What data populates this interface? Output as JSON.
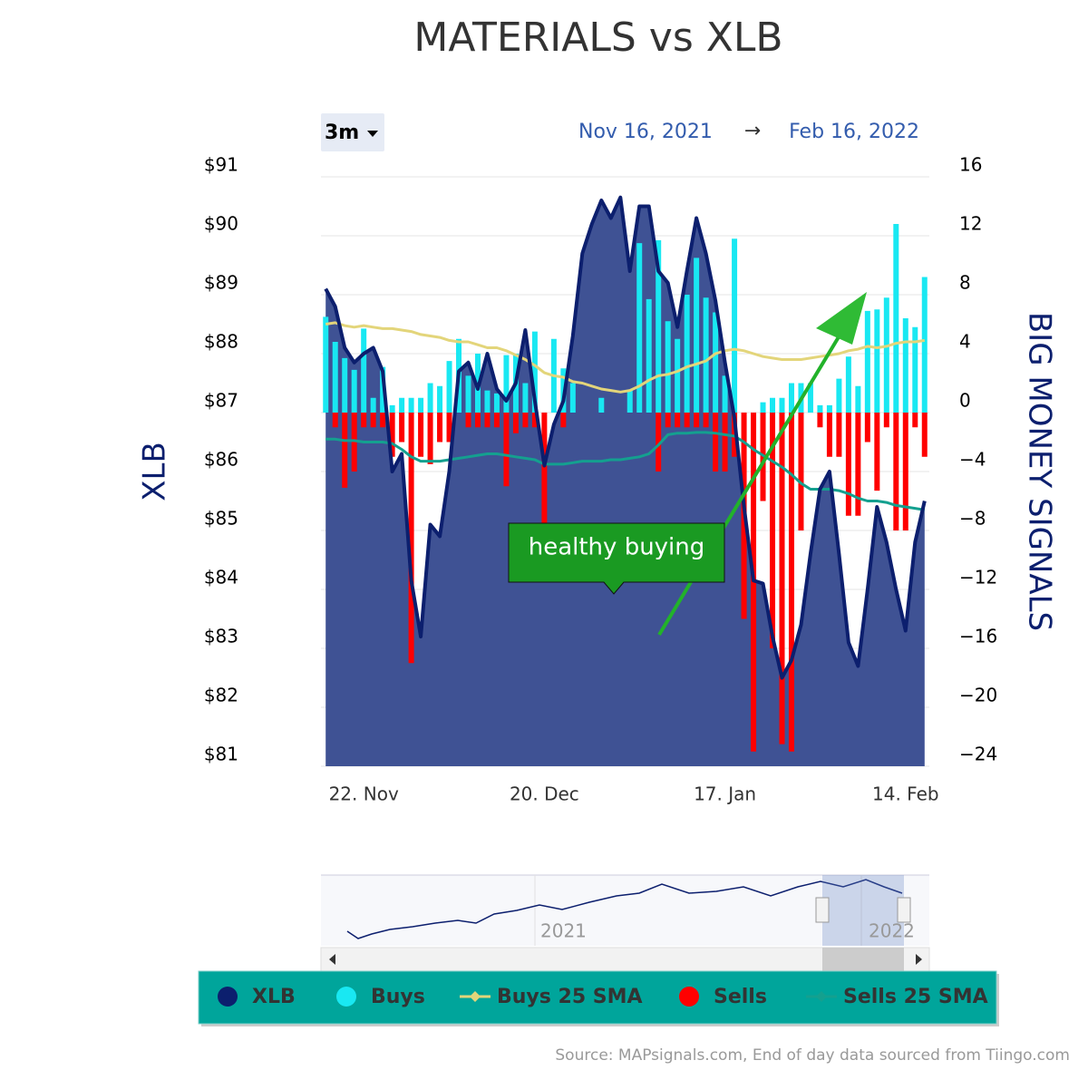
{
  "chart_data": {
    "type": "combo",
    "title": "MATERIALS vs XLB",
    "range_selector": {
      "button": "3m",
      "from": "Nov 16, 2021",
      "arrow": "→",
      "to": "Feb 16, 2022"
    },
    "ylabel": "XLB",
    "y2label": "BIG MONEY SIGNALS",
    "annotation": "healthy buying",
    "navigator": {
      "labels": [
        "2021",
        "2022"
      ]
    },
    "source": "Source: MAPsignals.com, End of day data sourced from Tiingo.com",
    "categories": [
      null,
      null,
      null,
      null,
      "22. Nov",
      null,
      null,
      null,
      null,
      null,
      null,
      null,
      null,
      null,
      null,
      null,
      null,
      null,
      null,
      null,
      null,
      null,
      null,
      "20. Dec",
      null,
      null,
      null,
      null,
      null,
      null,
      null,
      null,
      null,
      null,
      null,
      null,
      null,
      null,
      null,
      null,
      null,
      null,
      "17. Jan",
      null,
      null,
      null,
      null,
      null,
      null,
      null,
      null,
      null,
      null,
      null,
      null,
      null,
      null,
      null,
      null,
      null,
      null,
      "14. Feb",
      null,
      null
    ],
    "ylim": [
      81,
      91
    ],
    "yticks": [
      {
        "value": 81,
        "label": "$81"
      },
      {
        "value": 82,
        "label": "$82"
      },
      {
        "value": 83,
        "label": "$83"
      },
      {
        "value": 84,
        "label": "$84"
      },
      {
        "value": 85,
        "label": "$85"
      },
      {
        "value": 86,
        "label": "$86"
      },
      {
        "value": 87,
        "label": "$87"
      },
      {
        "value": 88,
        "label": "$88"
      },
      {
        "value": 89,
        "label": "$89"
      },
      {
        "value": 90,
        "label": "$90"
      },
      {
        "value": 91,
        "label": "$91"
      }
    ],
    "y2lim": [
      -24,
      16
    ],
    "y2ticks": [
      {
        "value": -24,
        "label": "−24"
      },
      {
        "value": -20,
        "label": "−20"
      },
      {
        "value": -16,
        "label": "−16"
      },
      {
        "value": -12,
        "label": "−12"
      },
      {
        "value": -8,
        "label": "−8"
      },
      {
        "value": -4,
        "label": "−4"
      },
      0,
      4,
      8,
      12,
      16
    ],
    "grid": true,
    "series": [
      {
        "name": "XLB",
        "type": "area",
        "color": "#0c1f6e",
        "fill": "#3f5294",
        "values": [
          89.1,
          88.8,
          88.1,
          87.85,
          88.0,
          88.1,
          87.7,
          86.0,
          86.3,
          84.15,
          83.2,
          85.1,
          84.9,
          86.0,
          87.7,
          87.85,
          87.4,
          88.0,
          87.4,
          87.2,
          87.5,
          88.4,
          87.2,
          86.1,
          86.8,
          87.2,
          88.3,
          89.7,
          90.2,
          90.6,
          90.3,
          90.65,
          89.4,
          90.5,
          90.5,
          89.4,
          89.2,
          88.45,
          89.4,
          90.3,
          89.7,
          88.9,
          87.85,
          86.9,
          85.4,
          84.15,
          84.1,
          83.2,
          82.5,
          82.8,
          83.4,
          84.6,
          85.7,
          86.0,
          84.6,
          83.1,
          82.7,
          84.0,
          85.4,
          84.8,
          84.0,
          83.3,
          84.8,
          85.5
        ]
      },
      {
        "name": "Buys",
        "type": "bar",
        "axis": "y2",
        "color": "#19e8f2",
        "values": [
          6.5,
          4.8,
          3.7,
          2.9,
          5.7,
          1,
          3.1,
          0.5,
          1,
          1,
          1,
          2,
          1.8,
          3.5,
          5,
          2.5,
          4,
          1.5,
          1.3,
          3.9,
          4,
          2,
          5.5,
          0,
          5,
          3,
          2,
          0,
          0,
          1,
          0,
          0,
          1.5,
          11.5,
          7.7,
          11.7,
          6.2,
          5,
          8,
          10.5,
          7.8,
          6.8,
          2.5,
          11.8,
          0,
          0,
          0.7,
          1,
          1,
          2,
          2,
          2,
          0.5,
          0.5,
          2.3,
          3.8,
          1.8,
          6.9,
          7,
          7.8,
          12.8,
          6.4,
          5.8,
          9.2
        ]
      },
      {
        "name": "Buys 25 SMA",
        "type": "line",
        "axis": "y2",
        "color": "#e3d57a",
        "values": [
          6.0,
          6.1,
          5.9,
          5.8,
          5.9,
          5.8,
          5.7,
          5.7,
          5.6,
          5.5,
          5.3,
          5.2,
          5.1,
          4.9,
          4.8,
          4.8,
          4.6,
          4.4,
          4.4,
          4.2,
          3.9,
          3.6,
          3.2,
          2.7,
          2.5,
          2.4,
          2.1,
          2.0,
          1.8,
          1.6,
          1.5,
          1.4,
          1.5,
          1.8,
          2.2,
          2.5,
          2.6,
          2.8,
          3.1,
          3.3,
          3.5,
          4.0,
          4.2,
          4.3,
          4.2,
          4.0,
          3.8,
          3.7,
          3.6,
          3.6,
          3.6,
          3.7,
          3.8,
          3.9,
          4.0,
          4.2,
          4.3,
          4.5,
          4.4,
          4.5,
          4.7,
          4.8,
          4.8,
          4.9
        ]
      },
      {
        "name": "Sells",
        "type": "bar",
        "axis": "y2",
        "color": "#ff0000",
        "values": [
          0,
          -1,
          -5.1,
          -4,
          -1,
          -1,
          -1,
          -3,
          -2,
          -17,
          -3,
          -3.5,
          -2,
          -2,
          0,
          -1,
          -1,
          -1,
          -1,
          -5,
          -1.4,
          -1,
          -1,
          -11,
          0,
          -1,
          0,
          0,
          0,
          0,
          0,
          0,
          0,
          0,
          0,
          -4,
          -1,
          -1,
          -1,
          -1,
          -1,
          -4,
          -4,
          -3,
          -14,
          -23,
          -6,
          -16,
          -22.5,
          -23,
          -8,
          0,
          -1,
          -3,
          -3,
          -7,
          -7,
          -2,
          -5.3,
          -1,
          -8,
          -8,
          -1,
          -3
        ]
      },
      {
        "name": "Sells 25 SMA",
        "type": "line",
        "axis": "y2",
        "color": "#14a08f",
        "values": [
          -1.8,
          -1.8,
          -1.9,
          -1.9,
          -2.0,
          -2.0,
          -2.0,
          -2.1,
          -2.5,
          -3.0,
          -3.3,
          -3.3,
          -3.3,
          -3.2,
          -3.1,
          -3.0,
          -2.9,
          -2.8,
          -2.8,
          -2.9,
          -3.0,
          -3.1,
          -3.2,
          -3.5,
          -3.5,
          -3.5,
          -3.4,
          -3.3,
          -3.3,
          -3.3,
          -3.2,
          -3.2,
          -3.1,
          -3.0,
          -2.8,
          -2.2,
          -1.5,
          -1.4,
          -1.4,
          -1.35,
          -1.35,
          -1.4,
          -1.5,
          -1.6,
          -2.0,
          -2.5,
          -2.9,
          -3.3,
          -3.7,
          -4.2,
          -4.8,
          -5.2,
          -5.2,
          -5.2,
          -5.3,
          -5.5,
          -5.8,
          -6.0,
          -6.0,
          -6.1,
          -6.3,
          -6.4,
          -6.5,
          -6.6
        ]
      }
    ]
  }
}
